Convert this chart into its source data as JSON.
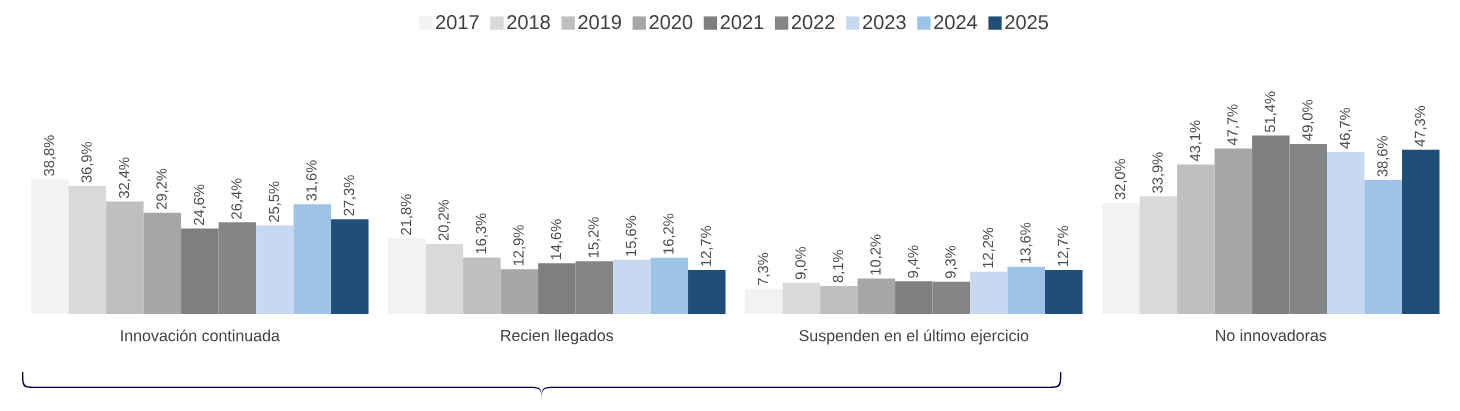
{
  "chart_data": {
    "type": "bar",
    "categories": [
      "Innovación continuada",
      "Recien llegados",
      "Suspenden en el último ejercicio",
      "No innovadoras"
    ],
    "series": [
      {
        "name": "2017",
        "color": "#f2f2f2",
        "values": [
          38.8,
          21.8,
          7.3,
          32.0
        ],
        "value_labels": [
          "38,8%",
          "21,8%",
          "7,3%",
          "32,0%"
        ]
      },
      {
        "name": "2018",
        "color": "#d9d9d9",
        "values": [
          36.9,
          20.2,
          9.0,
          33.9
        ],
        "value_labels": [
          "36,9%",
          "20,2%",
          "9,0%",
          "33,9%"
        ]
      },
      {
        "name": "2019",
        "color": "#bfbfbf",
        "values": [
          32.4,
          16.3,
          8.1,
          43.1
        ],
        "value_labels": [
          "32,4%",
          "16,3%",
          "8,1%",
          "43,1%"
        ]
      },
      {
        "name": "2020",
        "color": "#a6a6a6",
        "values": [
          29.2,
          12.9,
          10.2,
          47.7
        ],
        "value_labels": [
          "29,2%",
          "12,9%",
          "10,2%",
          "47,7%"
        ]
      },
      {
        "name": "2021",
        "color": "#7f7f7f",
        "values": [
          24.6,
          14.6,
          9.4,
          51.4
        ],
        "value_labels": [
          "24,6%",
          "14,6%",
          "9,4%",
          "51,4%"
        ]
      },
      {
        "name": "2022",
        "color": "#858585",
        "values": [
          26.4,
          15.2,
          9.3,
          49.0
        ],
        "value_labels": [
          "26,4%",
          "15,2%",
          "9,3%",
          "49,0%"
        ]
      },
      {
        "name": "2023",
        "color": "#c6d9f0",
        "values": [
          25.5,
          15.6,
          12.2,
          46.7
        ],
        "value_labels": [
          "25,5%",
          "15,6%",
          "12,2%",
          "46,7%"
        ]
      },
      {
        "name": "2024",
        "color": "#9dc3e6",
        "values": [
          31.6,
          16.2,
          13.6,
          38.6
        ],
        "value_labels": [
          "31,6%",
          "16,2%",
          "13,6%",
          "38,6%"
        ]
      },
      {
        "name": "2025",
        "color": "#1f4e79",
        "values": [
          27.3,
          12.7,
          12.7,
          47.3
        ],
        "value_labels": [
          "27,3%",
          "12,7%",
          "12,7%",
          "47,3%"
        ]
      }
    ],
    "legend": "top",
    "tick_labels": "x"
  }
}
